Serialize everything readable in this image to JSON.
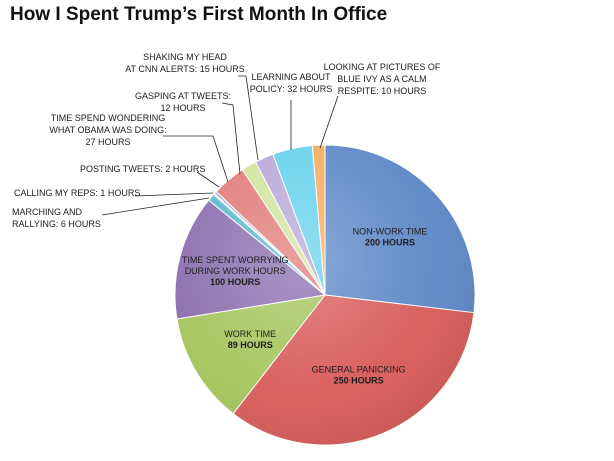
{
  "chart_data": {
    "type": "pie",
    "title": "How I Spent Trump’s First Month In Office",
    "slices": [
      {
        "name": "NON-WORK TIME",
        "value": 200,
        "value_label": "200 HOURS",
        "color": "#5b86c6",
        "label_inside": true
      },
      {
        "name": "GENERAL PANICKING",
        "value": 250,
        "value_label": "250 HOURS",
        "color": "#d85a58",
        "label_inside": true
      },
      {
        "name": "WORK TIME",
        "value": 89,
        "value_label": "89 HOURS",
        "color": "#a3c55c",
        "label_inside": true
      },
      {
        "name": "TIME SPENT WORRYING DURING WORK HOURS",
        "value": 100,
        "value_label": "100 HOURS",
        "color": "#8a6cae",
        "label_inside": true
      },
      {
        "name": "MARCHING AND RALLYING: 6 HOURS",
        "value": 6,
        "color": "#57b8cf",
        "label_inside": false
      },
      {
        "name": "CALLING MY REPS: 1 HOURS",
        "value": 1,
        "color": "#f2a64c",
        "label_inside": false
      },
      {
        "name": "POSTING TWEETS: 2 HOURS",
        "value": 2,
        "color": "#93a9d6",
        "label_inside": false
      },
      {
        "name": "TIME SPEND WONDERING WHAT OBAMA WAS DOING: 27 HOURS",
        "value": 27,
        "color": "#e07a78",
        "label_inside": false
      },
      {
        "name": "GASPING AT TWEETS: 12 HOURS",
        "value": 12,
        "color": "#cfe49b",
        "label_inside": false
      },
      {
        "name": "SHAKING MY HEAD AT CNN ALERTS: 15 HOURS",
        "value": 15,
        "color": "#b7a6d8",
        "label_inside": false
      },
      {
        "name": "LEARNING ABOUT POLICY: 32 HOURS",
        "value": 32,
        "color": "#64d1ea",
        "label_inside": false
      },
      {
        "name": "LOOKING AT PICTURES OF BLUE IVY AS A CALM RESPITE: 10 HOURS",
        "value": 10,
        "color": "#f4ab5c",
        "label_inside": false
      }
    ],
    "callout_lines": {
      "MARCHING AND RALLYING: 6 HOURS": [
        "MARCHING AND",
        "RALLYING: 6 HOURS"
      ],
      "CALLING MY REPS: 1 HOURS": [
        "CALLING MY REPS: 1 HOURS"
      ],
      "POSTING TWEETS: 2 HOURS": [
        "POSTING TWEETS: 2 HOURS"
      ],
      "TIME SPEND WONDERING WHAT OBAMA WAS DOING: 27 HOURS": [
        "TIME SPEND WONDERING",
        "WHAT OBAMA WAS DOING:",
        "27 HOURS"
      ],
      "GASPING AT TWEETS: 12 HOURS": [
        "GASPING AT TWEETS:",
        "12 HOURS"
      ],
      "SHAKING MY HEAD AT CNN ALERTS: 15 HOURS": [
        "SHAKING MY HEAD",
        "AT CNN ALERTS: 15 HOURS"
      ],
      "LEARNING ABOUT POLICY: 32 HOURS": [
        "LEARNING ABOUT",
        "POLICY: 32 HOURS"
      ],
      "LOOKING AT PICTURES OF BLUE IVY AS A CALM RESPITE: 10 HOURS": [
        "LOOKING AT PICTURES OF",
        "BLUE IVY AS A CALM",
        "RESPITE: 10 HOURS"
      ]
    },
    "inside_lines": {
      "NON-WORK TIME": [
        "NON-WORK TIME"
      ],
      "GENERAL PANICKING": [
        "GENERAL PANICKING"
      ],
      "WORK TIME": [
        "WORK TIME"
      ],
      "TIME SPENT WORRYING DURING WORK HOURS": [
        "TIME SPENT WORRYING",
        "DURING WORK HOURS"
      ]
    }
  }
}
